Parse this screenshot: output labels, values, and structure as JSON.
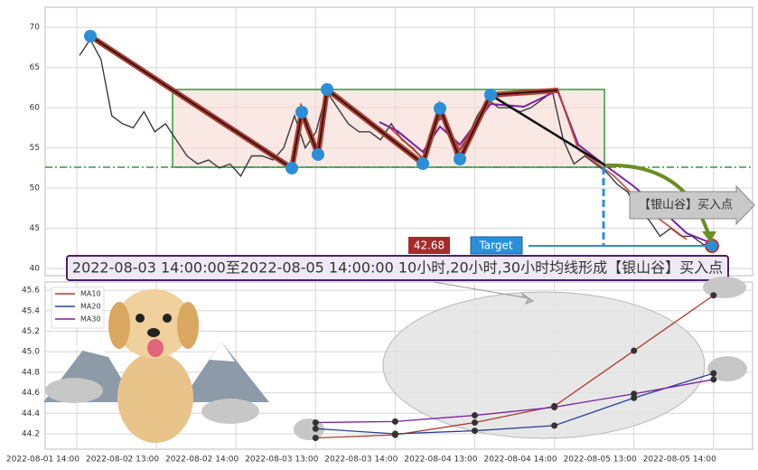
{
  "chart_data": [
    {
      "type": "line",
      "color": "#3a3a3a",
      "values": [
        66.5,
        68.5,
        66,
        59,
        58,
        57.5,
        59.5,
        57,
        58,
        56,
        54,
        53,
        53.5,
        52.5,
        53,
        51.5,
        54,
        54,
        53.5,
        55,
        59,
        55,
        57,
        62,
        60,
        58,
        57,
        57,
        56,
        58,
        56,
        55,
        53.5,
        58,
        59,
        54,
        56,
        59,
        61,
        60,
        60,
        59.5,
        60,
        61,
        62,
        56,
        53,
        54,
        53,
        52,
        50.5,
        49.5,
        47,
        46,
        44,
        45,
        44,
        44,
        43,
        42.68
      ],
      "ylim": [
        39.1,
        72.5
      ],
      "yticks": [
        40,
        45,
        50,
        55,
        60,
        65,
        70
      ],
      "grid": true,
      "annotations": {
        "price": "42.68",
        "target": "Target",
        "banner": "2022-08-03 14:00:00至2022-08-05 14:00:00 10小时,20小时,30小时均线形成【银山谷】买入点",
        "signal": "【银山谷】买入点"
      }
    },
    {
      "type": "line",
      "categories": [
        "2022-08-01 14:00",
        "2022-08-02 13:00",
        "2022-08-02 14:00",
        "2022-08-03 13:00",
        "2022-08-03 14:00",
        "2022-08-04 13:00",
        "2022-08-04 14:00",
        "2022-08-05 13:00",
        "2022-08-05 14:00"
      ],
      "series": [
        {
          "name": "MA10",
          "color": "#b03a2e",
          "values": [
            null,
            null,
            null,
            44.16,
            44.19,
            44.31,
            44.47,
            45.01,
            45.55
          ]
        },
        {
          "name": "MA20",
          "color": "#2c3e99",
          "values": [
            null,
            null,
            null,
            44.25,
            44.2,
            44.23,
            44.28,
            44.55,
            44.79
          ]
        },
        {
          "name": "MA30",
          "color": "#7b1fa2",
          "values": [
            null,
            null,
            null,
            44.31,
            44.32,
            44.38,
            44.46,
            44.59,
            44.73
          ]
        }
      ],
      "ylim": [
        44.05,
        45.68
      ],
      "yticks": [
        44.2,
        44.4,
        44.6,
        44.8,
        {
          "value": 45,
          "label": "45.0"
        },
        45.2,
        45.4,
        45.6
      ],
      "grid": true,
      "legend": "upper left"
    }
  ]
}
